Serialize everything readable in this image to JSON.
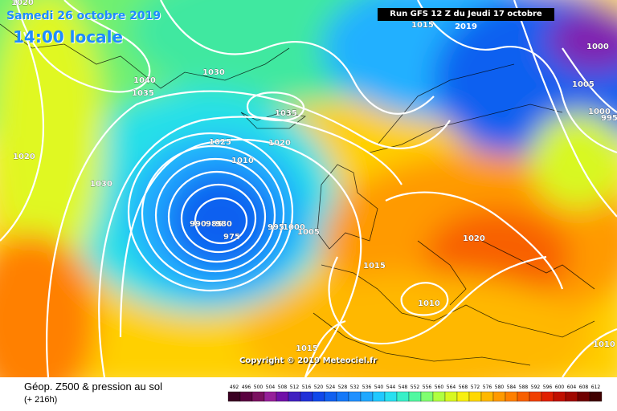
{
  "header": {
    "date": "Samedi 26 octobre 2019",
    "time": "14:00 locale",
    "run": "Run GFS 12 Z du Jeudi 17 octobre 2019"
  },
  "map": {
    "copyright": "Copyright © 2019 Meteociel.fr",
    "isobar_labels": [
      "1020",
      "1015",
      "1040",
      "1035",
      "1030",
      "1035",
      "1020",
      "1025",
      "1020",
      "1010",
      "1030",
      "990",
      "985",
      "980",
      "975",
      "995",
      "1000",
      "1005",
      "1015",
      "1020",
      "1010",
      "1010",
      "1000",
      "995",
      "1005",
      "1000",
      "1015"
    ]
  },
  "legend": {
    "title": "Géop. Z500 & pression au sol",
    "subtitle": "(+ 216h)",
    "scale_values": [
      "492",
      "496",
      "500",
      "504",
      "508",
      "512",
      "516",
      "520",
      "524",
      "528",
      "532",
      "536",
      "540",
      "544",
      "548",
      "552",
      "556",
      "560",
      "564",
      "568",
      "572",
      "576",
      "580",
      "584",
      "588",
      "592",
      "596",
      "600",
      "604",
      "608",
      "612"
    ],
    "scale_colors": [
      "#3a0022",
      "#5a0040",
      "#7a1060",
      "#96209a",
      "#7010a8",
      "#4020c0",
      "#2030d8",
      "#1048ea",
      "#1060f0",
      "#1478f8",
      "#2090ff",
      "#20a8ff",
      "#20c8ff",
      "#28e0f0",
      "#38f0c8",
      "#50f8a0",
      "#80ff70",
      "#b0ff40",
      "#d8f820",
      "#f8f010",
      "#ffd800",
      "#ffb800",
      "#ff9a00",
      "#ff8000",
      "#f86000",
      "#f04000",
      "#e02000",
      "#c01000",
      "#a00800",
      "#700000",
      "#400000"
    ]
  },
  "colors": {
    "isobar": "#ffffff",
    "low_center": "#1010a0"
  }
}
